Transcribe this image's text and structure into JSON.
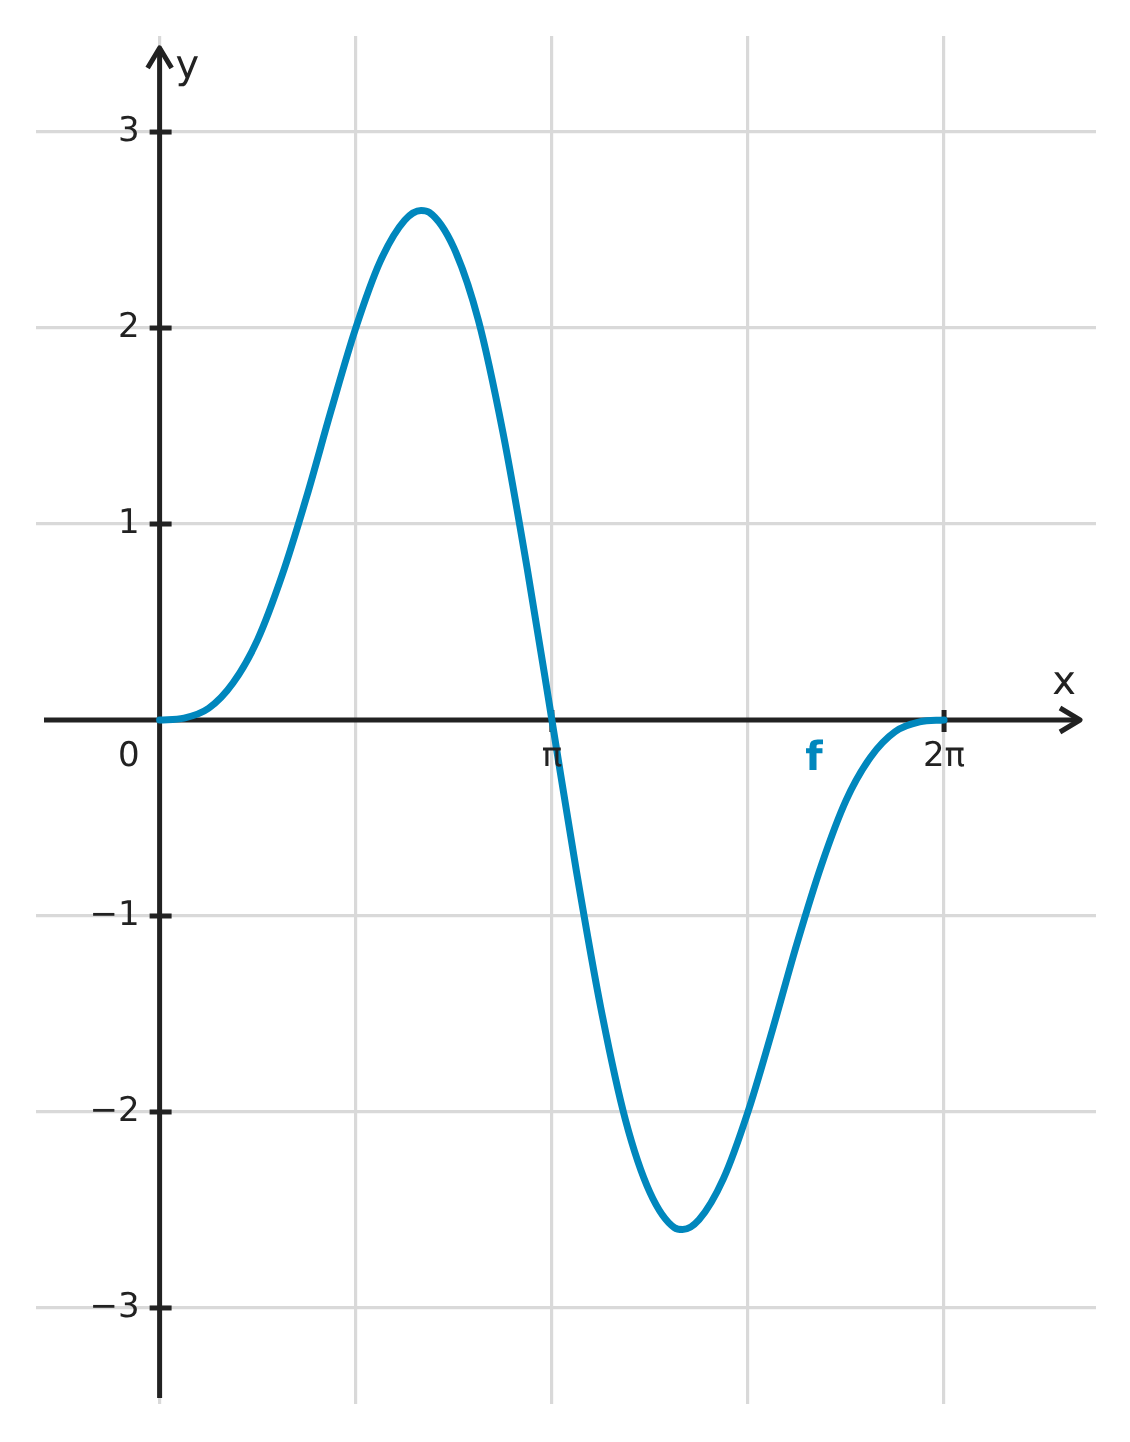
{
  "chart_data": {
    "type": "line",
    "xlabel": "x",
    "ylabel": "y",
    "x": [
      0,
      0.196,
      0.393,
      0.589,
      0.785,
      0.982,
      1.178,
      1.374,
      1.571,
      1.767,
      1.963,
      2.094,
      2.16,
      2.356,
      2.553,
      2.749,
      2.945,
      3.142,
      3.338,
      3.534,
      3.731,
      3.927,
      4.123,
      4.189,
      4.32,
      4.516,
      4.712,
      4.909,
      5.105,
      5.301,
      5.498,
      5.694,
      5.89,
      6.087,
      6.283
    ],
    "series": [
      {
        "name": "f",
        "color": "#0087bd",
        "values": [
          0,
          0.01,
          0.06,
          0.19,
          0.41,
          0.74,
          1.14,
          1.58,
          2.0,
          2.34,
          2.55,
          2.6,
          2.59,
          2.41,
          2.04,
          1.47,
          0.77,
          0,
          -0.77,
          -1.47,
          -2.04,
          -2.41,
          -2.59,
          -2.6,
          -2.55,
          -2.34,
          -2.0,
          -1.58,
          -1.14,
          -0.74,
          -0.41,
          -0.19,
          -0.06,
          -0.01,
          0
        ]
      }
    ],
    "xlim": [
      -0.99,
      7.5
    ],
    "ylim": [
      -3.49,
      3.49
    ],
    "xticks": [
      0,
      {
        "value": 1.571,
        "label": null
      },
      {
        "value": 3.142,
        "label": "π"
      },
      {
        "value": 4.712,
        "label": null
      },
      {
        "value": 6.283,
        "label": "2π"
      }
    ],
    "yticks": [
      -3,
      -2,
      -1,
      1,
      2,
      3
    ],
    "grid": true,
    "legend": false,
    "marker": "none"
  }
}
